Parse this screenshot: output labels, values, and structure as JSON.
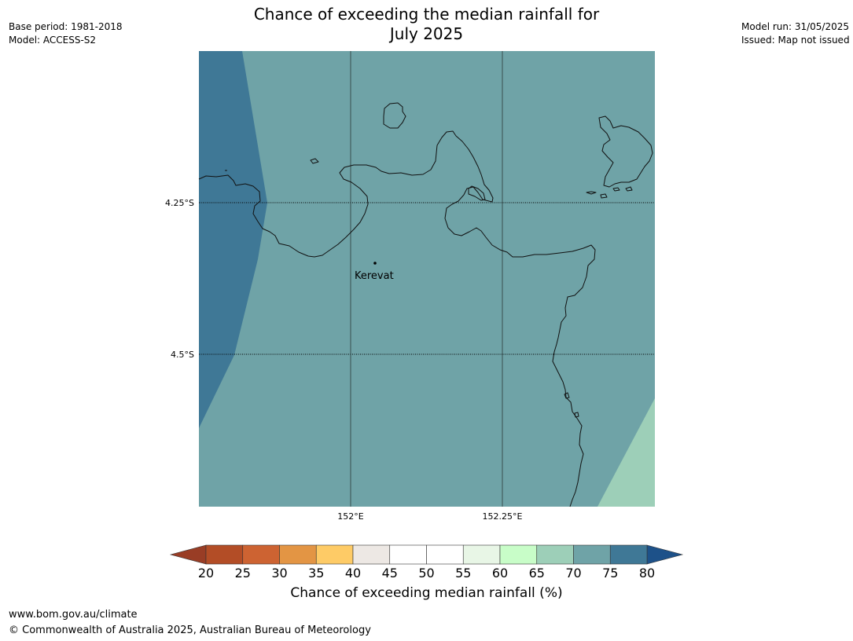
{
  "title_line1": "Chance of exceeding the median rainfall for",
  "title_line2": "July 2025",
  "meta": {
    "base_period": "Base period: 1981-2018",
    "model": "Model: ACCESS-S2",
    "model_run": "Model run: 31/05/2025",
    "issued": "Issued: Map not issued"
  },
  "map": {
    "lat_labels": [
      "4.25°S",
      "4.5°S"
    ],
    "lon_labels": [
      "152°E",
      "152.25°E"
    ],
    "place_label": "Kerevat",
    "region_colors": {
      "75-80": "#3f7896",
      "70-75": "#6fa3a7",
      "65-70": "#9dcfb8"
    }
  },
  "colorbar": {
    "label": "Chance of exceeding median rainfall (%)",
    "ticks": [
      "20",
      "25",
      "30",
      "35",
      "40",
      "45",
      "50",
      "55",
      "60",
      "65",
      "70",
      "75",
      "80"
    ],
    "colors": [
      "#b34d26",
      "#cd6332",
      "#e39544",
      "#fecb66",
      "#ede8e4",
      "#ffffff",
      "#ffffff",
      "#e8f6e6",
      "#c8fdc8",
      "#9dcfb8",
      "#6fa3a7",
      "#3f7896"
    ],
    "under_color": "#993d25",
    "over_color": "#1d5189"
  },
  "footer": {
    "url": "www.bom.gov.au/climate",
    "copyright": "© Commonwealth of Australia 2025, Australian Bureau of Meteorology"
  }
}
